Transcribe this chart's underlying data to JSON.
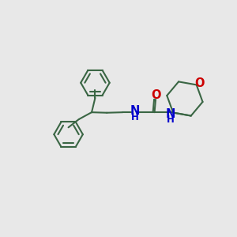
{
  "background_color": "#e8e8e8",
  "bond_color": "#3a6644",
  "O_color": "#cc0000",
  "N_color": "#0000cc",
  "line_width": 1.5,
  "font_size": 10.5,
  "fig_width": 3.0,
  "fig_height": 3.0,
  "dpi": 100,
  "xlim": [
    0,
    10
  ],
  "ylim": [
    0,
    10
  ]
}
